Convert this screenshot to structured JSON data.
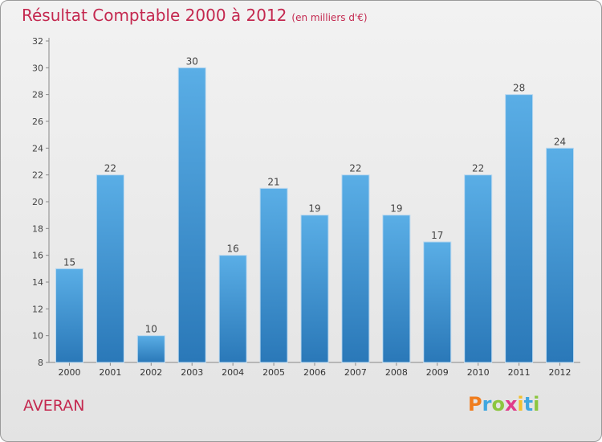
{
  "chart_data": {
    "type": "bar",
    "title": "Résultat Comptable 2000 à 2012",
    "subtitle": "(en milliers d'€)",
    "categories": [
      "2000",
      "2001",
      "2002",
      "2003",
      "2004",
      "2005",
      "2006",
      "2007",
      "2008",
      "2009",
      "2010",
      "2011",
      "2012"
    ],
    "values": [
      15,
      22,
      10,
      30,
      16,
      21,
      19,
      22,
      19,
      17,
      22,
      28,
      24
    ],
    "ylim": [
      8,
      32
    ],
    "yticks": [
      8,
      10,
      12,
      14,
      16,
      18,
      20,
      22,
      24,
      26,
      28,
      30,
      32
    ],
    "xlabel": "",
    "ylabel": "",
    "grid": false
  },
  "footer": {
    "place": "AVERAN",
    "logo_letters": [
      "P",
      "r",
      "o",
      "x",
      "i",
      "t",
      "i"
    ],
    "logo_colors": [
      "#f07d1e",
      "#3fa7e0",
      "#8cc63f",
      "#e03c8a",
      "#f2c12e",
      "#3fa7e0",
      "#8cc63f"
    ]
  },
  "colors": {
    "title": "#c4284f",
    "bar_top": "#5aaee6",
    "bar_bottom": "#2a78b8"
  }
}
